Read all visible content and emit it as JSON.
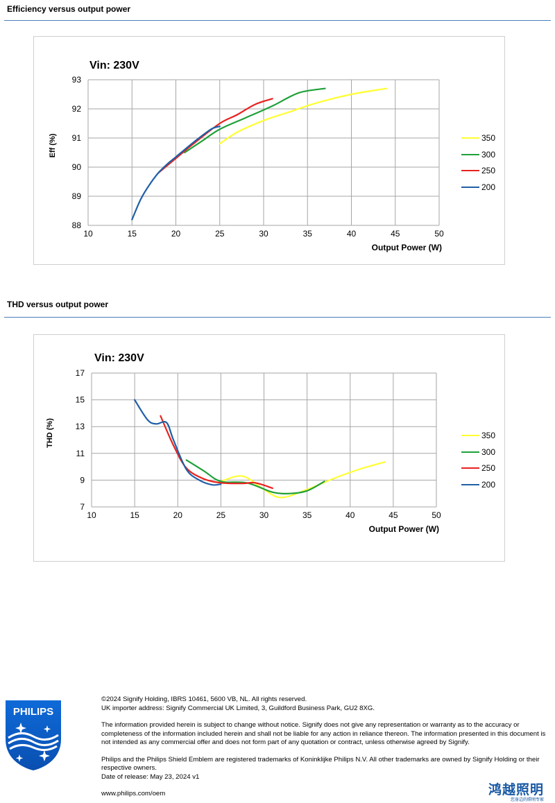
{
  "sections": {
    "efficiency_title": "Efficiency versus output power",
    "thd_title": "THD versus output power"
  },
  "legend": [
    {
      "label": "350",
      "color": "#ffff33"
    },
    {
      "label": "300",
      "color": "#1fa038"
    },
    {
      "label": "250",
      "color": "#e8211e"
    },
    {
      "label": "200",
      "color": "#1f5fa6"
    }
  ],
  "chart_data": [
    {
      "type": "line",
      "title": "Vin: 230V",
      "xlabel": "Output Power (W)",
      "ylabel": "Eff  (%)",
      "xlim": [
        10,
        50
      ],
      "ylim": [
        88,
        93
      ],
      "xticks": [
        10,
        15,
        20,
        25,
        30,
        35,
        40,
        45,
        50
      ],
      "yticks": [
        88,
        89,
        90,
        91,
        92,
        93
      ],
      "grid": true,
      "legend_position": "right",
      "series": [
        {
          "name": "350",
          "color": "#ffff33",
          "x": [
            25,
            27,
            30,
            33,
            36,
            40,
            44
          ],
          "y": [
            90.8,
            91.2,
            91.6,
            91.9,
            92.2,
            92.5,
            92.7
          ]
        },
        {
          "name": "300",
          "color": "#1fa038",
          "x": [
            21,
            23,
            25,
            28,
            31,
            34,
            37
          ],
          "y": [
            90.5,
            90.9,
            91.3,
            91.7,
            92.1,
            92.55,
            92.7
          ]
        },
        {
          "name": "250",
          "color": "#e8211e",
          "x": [
            18,
            20,
            22,
            25,
            27,
            29,
            31
          ],
          "y": [
            89.8,
            90.3,
            90.8,
            91.5,
            91.8,
            92.15,
            92.35
          ]
        },
        {
          "name": "200",
          "color": "#1f5fa6",
          "x": [
            15,
            16,
            17,
            18,
            19,
            20,
            22,
            24,
            25
          ],
          "y": [
            88.2,
            88.9,
            89.4,
            89.8,
            90.1,
            90.35,
            90.85,
            91.3,
            91.4
          ]
        }
      ]
    },
    {
      "type": "line",
      "title": "Vin: 230V",
      "xlabel": "Output Power (W)",
      "ylabel": "THD  (%)",
      "xlim": [
        10,
        50
      ],
      "ylim": [
        7,
        17
      ],
      "xticks": [
        10,
        15,
        20,
        25,
        30,
        35,
        40,
        45,
        50
      ],
      "yticks": [
        7,
        9,
        11,
        13,
        15,
        17
      ],
      "grid": true,
      "legend_position": "right",
      "series": [
        {
          "name": "350",
          "color": "#ffff33",
          "x": [
            25,
            27.5,
            30,
            32,
            35,
            38,
            41,
            44
          ],
          "y": [
            8.9,
            9.3,
            8.3,
            7.7,
            8.3,
            9.1,
            9.8,
            10.35
          ]
        },
        {
          "name": "300",
          "color": "#1fa038",
          "x": [
            21,
            23,
            25,
            28,
            31,
            33,
            35,
            37
          ],
          "y": [
            10.5,
            9.7,
            8.9,
            8.8,
            8.1,
            8.0,
            8.2,
            8.9
          ]
        },
        {
          "name": "250",
          "color": "#e8211e",
          "x": [
            18,
            19.5,
            21,
            23,
            25,
            27.5,
            29,
            31
          ],
          "y": [
            13.8,
            11.6,
            9.9,
            9.1,
            8.8,
            8.75,
            8.8,
            8.4
          ]
        },
        {
          "name": "200",
          "color": "#1f5fa6",
          "x": [
            15,
            16.5,
            17.5,
            18.7,
            19.5,
            21,
            22.5,
            24,
            25
          ],
          "y": [
            15.0,
            13.5,
            13.2,
            13.3,
            12.0,
            9.8,
            9.0,
            8.65,
            8.7
          ]
        }
      ]
    }
  ],
  "footer": {
    "line1": "©2024 Signify Holding, IBRS 10461, 5600 VB, NL. All rights reserved.",
    "line2": "UK importer address: Signify Commercial UK Limited, 3, Guildford Business Park, GU2 8XG.",
    "disclaimer": "The information provided herein is subject to change without notice. Signify does not give any representation or warranty as to the accuracy or completeness of the information included herein and shall not be liable for any action in reliance thereon. The information presented in this document is not intended as any commercial offer and does not form part of any quotation or contract, unless otherwise agreed by Signify.",
    "trademarks": "Philips and the Philips Shield Emblem are registered trademarks of Koninklijke Philips N.V. All other trademarks are owned by Signify Holding or their respective owners.",
    "release": "Date of release: May 23, 2024 v1",
    "url": "www.philips.com/oem"
  },
  "logo": {
    "text": "PHILIPS",
    "color": "#0b5ed7"
  },
  "watermark": {
    "cn": "鸿越照明",
    "sub": "您身边的照明专家",
    "color": "#1a5aa5"
  }
}
